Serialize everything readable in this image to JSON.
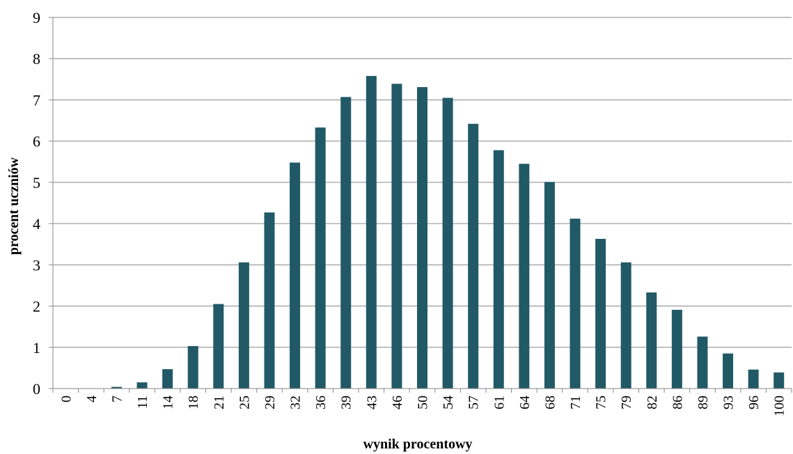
{
  "chart_data": {
    "type": "bar",
    "title": "",
    "xlabel": "wynik procentowy",
    "ylabel": "procent uczniów",
    "ylim": [
      0,
      9
    ],
    "yticks": [
      0,
      1,
      2,
      3,
      4,
      5,
      6,
      7,
      8,
      9
    ],
    "grid": true,
    "bar_color": "#215967",
    "categories": [
      "0",
      "4",
      "7",
      "11",
      "14",
      "18",
      "21",
      "25",
      "29",
      "32",
      "36",
      "39",
      "43",
      "46",
      "50",
      "54",
      "57",
      "61",
      "64",
      "68",
      "71",
      "75",
      "79",
      "82",
      "86",
      "89",
      "93",
      "96",
      "100"
    ],
    "values": [
      0,
      0,
      0.04,
      0.15,
      0.47,
      1.03,
      2.05,
      3.06,
      4.27,
      5.48,
      6.33,
      7.07,
      7.58,
      7.39,
      7.31,
      7.05,
      6.42,
      5.78,
      5.45,
      5.01,
      4.12,
      3.63,
      3.06,
      2.33,
      1.91,
      1.26,
      0.85,
      0.46,
      0.39
    ]
  }
}
